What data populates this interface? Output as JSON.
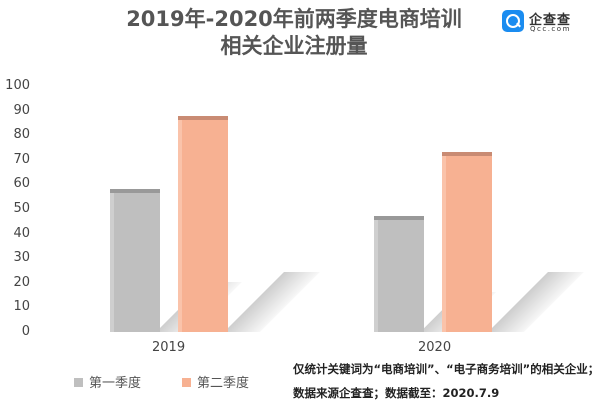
{
  "header": {
    "title_line1": "2019年-2020年前两季度电商培训",
    "title_line2": "相关企业注册量",
    "logo_name": "企查查",
    "logo_sub": "Qcc.com"
  },
  "legend": [
    {
      "label": "第一季度",
      "color": "#bfbfbf"
    },
    {
      "label": "第二季度",
      "color": "#f7b192"
    }
  ],
  "note": {
    "line1": "仅统计关键词为“电商培训”、“电子商务培训”的相关企业；",
    "line2": "数据来源企查查；数据截至：2020.7.9"
  },
  "chart_data": {
    "type": "bar",
    "title": "2019年-2020年前两季度电商培训相关企业注册量",
    "categories": [
      "2019",
      "2020"
    ],
    "series": [
      {
        "name": "第一季度",
        "values": [
          58,
          47
        ],
        "color": "#bfbfbf"
      },
      {
        "name": "第二季度",
        "values": [
          88,
          73
        ],
        "color": "#f7b192"
      }
    ],
    "xlabel": "",
    "ylabel": "",
    "ylim": [
      0,
      100
    ],
    "yticks": [
      "100",
      "90",
      "80",
      "70",
      "60",
      "50",
      "40",
      "30",
      "20",
      "10",
      "0"
    ],
    "grid": false,
    "legend_position": "bottom-left",
    "style": "3d-bar"
  }
}
